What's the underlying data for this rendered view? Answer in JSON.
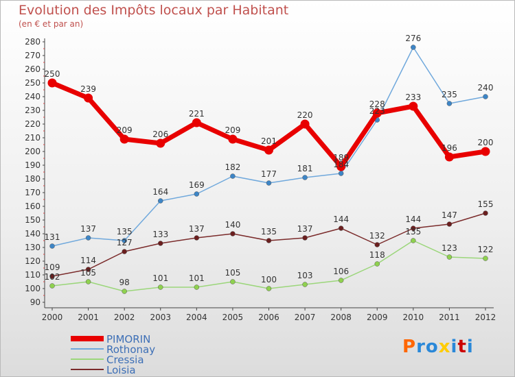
{
  "header": {
    "title": "Evolution des Impôts locaux par Habitant",
    "subtitle": "(en € et par an)"
  },
  "logo": {
    "text": "Proxiti",
    "colors": [
      "#ff6600",
      "#2a88d8",
      "#2a88d8",
      "#ffcc00",
      "#2a88d8",
      "#cc0000",
      "#2a88d8"
    ]
  },
  "colors": {
    "PIMORIN": "#e80000",
    "Rothonay": "#6fa8dc",
    "Cressia": "#9bd67a",
    "Loisia": "#7a2a2a",
    "title": "#c0504d",
    "axis": "#444444"
  },
  "chart_data": {
    "type": "line",
    "title": "Evolution des Impôts locaux par Habitant",
    "subtitle": "(en € et par an)",
    "categories": [
      "2000",
      "2001",
      "2002",
      "2003",
      "2004",
      "2005",
      "2006",
      "2007",
      "2008",
      "2009",
      "2010",
      "2011",
      "2012"
    ],
    "ylim": [
      90,
      280
    ],
    "yticks": [
      90,
      100,
      110,
      120,
      130,
      140,
      150,
      160,
      170,
      180,
      190,
      200,
      210,
      220,
      230,
      240,
      250,
      260,
      270,
      280
    ],
    "grid": false,
    "legend": "bottom-left",
    "series": [
      {
        "name": "PIMORIN",
        "values": [
          250,
          239,
          209,
          206,
          221,
          209,
          201,
          220,
          189,
          228,
          233,
          196,
          200
        ]
      },
      {
        "name": "Rothonay",
        "values": [
          131,
          137,
          135,
          164,
          169,
          182,
          177,
          181,
          184,
          223,
          276,
          235,
          240
        ]
      },
      {
        "name": "Cressia",
        "values": [
          102,
          105,
          98,
          101,
          101,
          105,
          100,
          103,
          106,
          118,
          135,
          123,
          122
        ]
      },
      {
        "name": "Loisia",
        "values": [
          109,
          114,
          127,
          133,
          137,
          140,
          135,
          137,
          144,
          132,
          144,
          147,
          155
        ]
      }
    ]
  }
}
